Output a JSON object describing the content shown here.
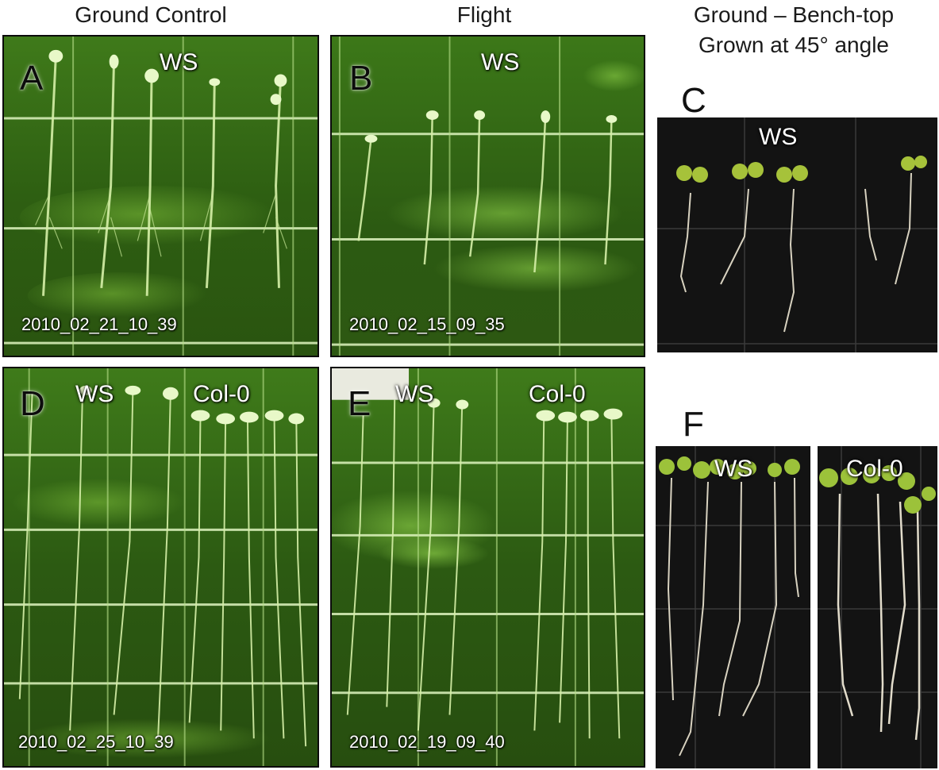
{
  "headers": {
    "ground_control": "Ground Control",
    "flight": "Flight",
    "bench_top_line1": "Ground – Bench-top",
    "bench_top_line2": "Grown at 45° angle"
  },
  "panels": {
    "A": {
      "letter": "A",
      "genotype": "WS",
      "timestamp": "2010_02_21_10_39"
    },
    "B": {
      "letter": "B",
      "genotype": "WS",
      "timestamp": "2010_02_15_09_35"
    },
    "C": {
      "letter": "C",
      "genotype": "WS"
    },
    "D": {
      "letter": "D",
      "genotype_left": "WS",
      "genotype_right": "Col-0",
      "timestamp": "2010_02_25_10_39"
    },
    "E": {
      "letter": "E",
      "genotype_left": "WS",
      "genotype_right": "Col-0",
      "timestamp": "2010_02_19_09_40"
    },
    "F": {
      "letter": "F",
      "genotype_left": "WS",
      "genotype_right": "Col-0"
    }
  },
  "colors": {
    "green_plate_dark": "#1d3a0c",
    "green_plate_light": "#5f9a2a",
    "grid_line": "#d8f0b8",
    "dark_plate": "#121212",
    "leaf_green": "#9cc23a"
  }
}
